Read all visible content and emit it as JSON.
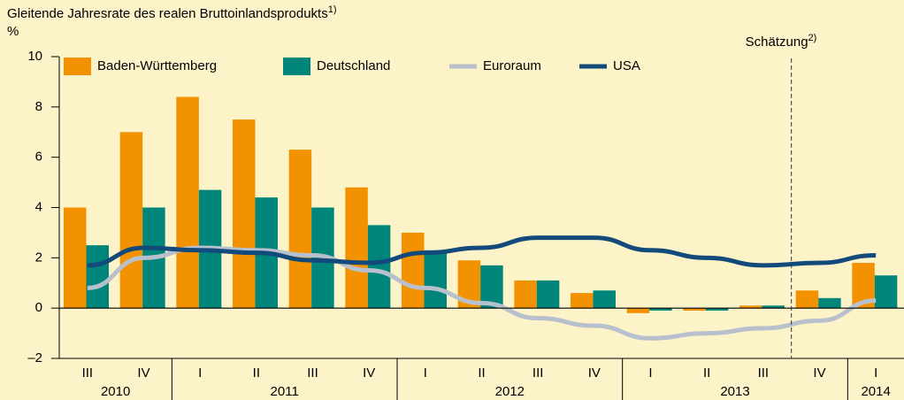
{
  "chart_data": {
    "type": "bar_line",
    "title": "Gleitende Jahresrate des realen Bruttoinlandsprodukts",
    "title_superscript": "1)",
    "y_unit": "%",
    "categories": [
      "III",
      "IV",
      "I",
      "II",
      "III",
      "IV",
      "I",
      "II",
      "III",
      "IV",
      "I",
      "II",
      "III",
      "IV",
      "I"
    ],
    "year_groups": [
      {
        "label": "2010",
        "count": 2
      },
      {
        "label": "2011",
        "count": 4
      },
      {
        "label": "2012",
        "count": 4
      },
      {
        "label": "2013",
        "count": 4
      },
      {
        "label": "2014",
        "count": 1
      }
    ],
    "series": [
      {
        "name": "Baden-Württemberg",
        "kind": "bar",
        "color": "#f39200",
        "values": [
          4.0,
          7.0,
          8.4,
          7.5,
          6.3,
          4.8,
          3.0,
          1.9,
          1.1,
          0.6,
          -0.2,
          -0.1,
          0.1,
          0.7,
          1.8
        ]
      },
      {
        "name": "Deutschland",
        "kind": "bar",
        "color": "#00857a",
        "values": [
          2.5,
          4.0,
          4.7,
          4.4,
          4.0,
          3.3,
          2.3,
          1.7,
          1.1,
          0.7,
          -0.1,
          -0.1,
          0.1,
          0.4,
          1.3
        ]
      },
      {
        "name": "Euroraum",
        "kind": "line",
        "color": "#b9c0cd",
        "values": [
          0.8,
          2.0,
          2.4,
          2.3,
          2.1,
          1.5,
          0.8,
          0.2,
          -0.4,
          -0.7,
          -1.2,
          -1.0,
          -0.8,
          -0.5,
          0.3
        ]
      },
      {
        "name": "USA",
        "kind": "line",
        "color": "#134a7c",
        "values": [
          1.7,
          2.4,
          2.3,
          2.2,
          1.9,
          1.8,
          2.2,
          2.4,
          2.8,
          2.8,
          2.3,
          2.0,
          1.7,
          1.8,
          2.1
        ]
      }
    ],
    "annotation": {
      "text": "Schätzung",
      "superscript": "2)",
      "from_index": 13
    },
    "ylim": [
      -2,
      10
    ],
    "yticks": [
      {
        "value": -2,
        "label": "–2"
      },
      0,
      2,
      4,
      6,
      8,
      10
    ]
  }
}
